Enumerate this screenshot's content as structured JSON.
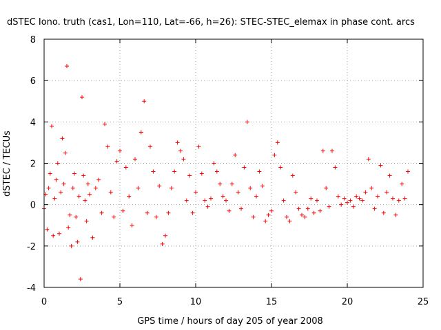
{
  "chart_data": {
    "type": "scatter",
    "title": "dSTEC Iono. truth (cas1, Lon=110, Lat=-66, h=26): STEC-STEC_elemax in phase cont. arcs",
    "xlabel": "GPS time / hours of day 205 of year 2008",
    "ylabel": "dSTEC  / TECUs",
    "xlim": [
      0,
      25
    ],
    "ylim": [
      -4,
      8
    ],
    "xticks": [
      0,
      5,
      10,
      15,
      20,
      25
    ],
    "yticks": [
      -4,
      -2,
      0,
      2,
      4,
      6,
      8
    ],
    "grid": true,
    "marker": "+",
    "color": "#ff0000",
    "series": [
      {
        "x": [
          0.0,
          0.1,
          0.2,
          0.3,
          0.4,
          0.5,
          0.6,
          0.7,
          0.8,
          0.9,
          1.0,
          1.1,
          1.2,
          1.3,
          1.4,
          1.5,
          1.6,
          1.7,
          1.8,
          1.9,
          2.0,
          2.1,
          2.2,
          2.3,
          2.4,
          2.5,
          2.6,
          2.7,
          2.8,
          2.9,
          3.0,
          3.2,
          3.4,
          3.6,
          3.8,
          4.0,
          4.2,
          4.4,
          4.6,
          4.8,
          5.0,
          5.2,
          5.4,
          5.6,
          5.8,
          6.0,
          6.2,
          6.4,
          6.6,
          6.8,
          7.0,
          7.2,
          7.4,
          7.6,
          7.8,
          8.0,
          8.2,
          8.4,
          8.6,
          8.8,
          9.0,
          9.2,
          9.4,
          9.6,
          9.8,
          10.0,
          10.2,
          10.4,
          10.6,
          10.8,
          11.0,
          11.2,
          11.4,
          11.6,
          11.8,
          12.0,
          12.2,
          12.4,
          12.6,
          12.8,
          13.0,
          13.2,
          13.4,
          13.6,
          13.8,
          14.0,
          14.2,
          14.4,
          14.6,
          14.8,
          15.0,
          15.2,
          15.4,
          15.6,
          15.8,
          16.0,
          16.2,
          16.4,
          16.6,
          16.8,
          17.0,
          17.2,
          17.4,
          17.6,
          17.8,
          18.0,
          18.2,
          18.4,
          18.6,
          18.8,
          19.0,
          19.2,
          19.4,
          19.6,
          19.8,
          20.0,
          20.2,
          20.4,
          20.6,
          20.8,
          21.0,
          21.2,
          21.4,
          21.6,
          21.8,
          22.0,
          22.2,
          22.4,
          22.6,
          22.8,
          23.0,
          23.2,
          23.4,
          23.6,
          23.8,
          24.0
        ],
        "y": [
          -0.2,
          0.5,
          -1.2,
          0.8,
          1.5,
          3.8,
          -1.5,
          0.3,
          1.2,
          2.0,
          -1.4,
          0.6,
          3.2,
          1.0,
          2.5,
          6.7,
          -1.1,
          -0.5,
          -2.0,
          0.8,
          1.5,
          -0.6,
          -1.8,
          0.4,
          -3.6,
          5.2,
          1.4,
          0.2,
          -0.8,
          1.0,
          0.5,
          -1.6,
          0.8,
          1.2,
          -0.4,
          3.9,
          2.8,
          0.6,
          -0.6,
          2.1,
          2.6,
          -0.3,
          1.8,
          0.4,
          -1.0,
          2.2,
          0.8,
          3.5,
          5.0,
          -0.4,
          2.8,
          1.6,
          -0.6,
          0.9,
          -1.9,
          -1.5,
          -0.4,
          0.8,
          1.6,
          3.0,
          2.6,
          2.2,
          0.2,
          1.4,
          -0.4,
          0.6,
          2.8,
          1.5,
          0.2,
          -0.1,
          0.3,
          2.0,
          1.6,
          1.0,
          0.4,
          0.2,
          -0.3,
          1.0,
          2.4,
          0.6,
          -0.2,
          1.8,
          4.0,
          0.8,
          -0.6,
          0.4,
          1.6,
          0.9,
          -0.8,
          -0.5,
          -0.3,
          2.4,
          3.0,
          1.8,
          0.2,
          -0.6,
          -0.8,
          1.4,
          0.6,
          -0.2,
          -0.5,
          -0.6,
          -0.2,
          0.3,
          -0.4,
          0.2,
          -0.3,
          2.6,
          0.8,
          -0.1,
          2.6,
          1.8,
          0.4,
          0.0,
          0.3,
          0.1,
          0.2,
          -0.1,
          0.4,
          0.3,
          0.2,
          0.6,
          2.2,
          0.8,
          -0.2,
          0.4,
          1.9,
          -0.4,
          0.6,
          1.4,
          0.3,
          -0.5,
          0.2,
          1.0,
          0.3,
          1.6
        ]
      }
    ]
  }
}
